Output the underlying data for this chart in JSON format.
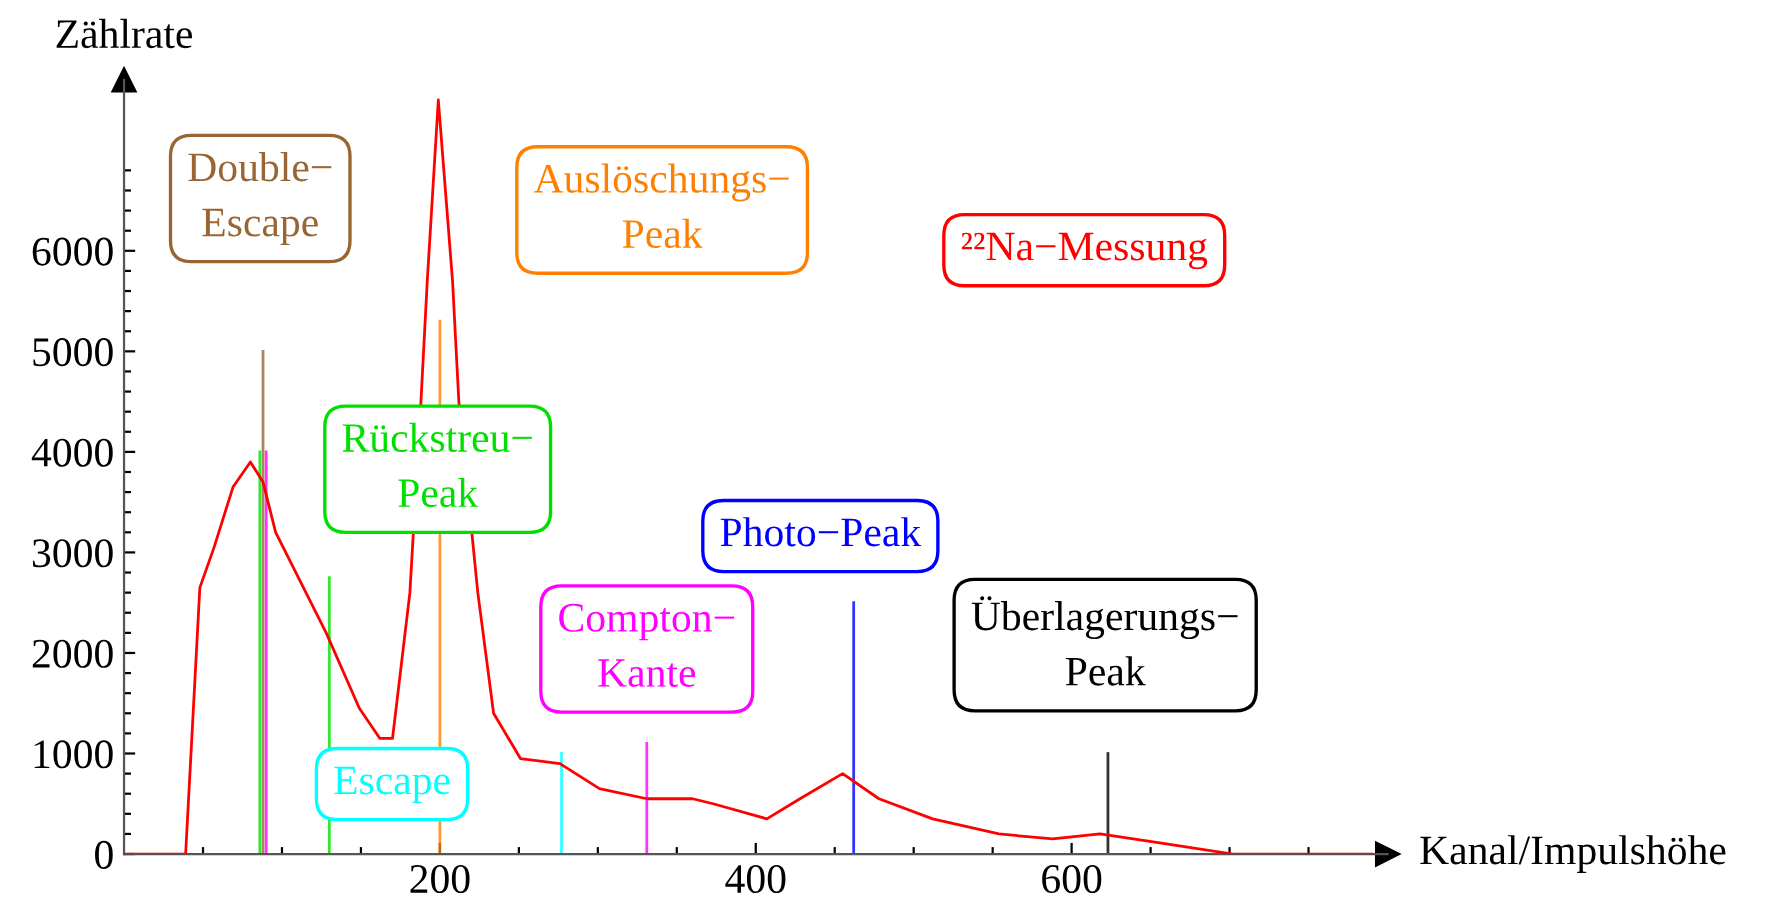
{
  "chart_data": {
    "type": "line",
    "xlabel": "Kanal/Impulshöhe",
    "ylabel": "Zählrate",
    "xlim": [
      0,
      800
    ],
    "ylim": [
      0,
      7700
    ],
    "xticks": [
      {
        "value": 50,
        "label": null
      },
      {
        "value": 100,
        "label": null
      },
      {
        "value": 150,
        "label": null
      },
      200,
      {
        "value": 250,
        "label": null
      },
      {
        "value": 300,
        "label": null
      },
      {
        "value": 350,
        "label": null
      },
      400,
      {
        "value": 450,
        "label": null
      },
      {
        "value": 500,
        "label": null
      },
      {
        "value": 550,
        "label": null
      },
      600,
      {
        "value": 650,
        "label": null
      },
      {
        "value": 700,
        "label": null
      },
      {
        "value": 750,
        "label": null
      }
    ],
    "yticks": [
      0,
      {
        "value": 200,
        "label": null
      },
      {
        "value": 400,
        "label": null
      },
      {
        "value": 600,
        "label": null
      },
      {
        "value": 800,
        "label": null
      },
      1000,
      {
        "value": 1200,
        "label": null
      },
      {
        "value": 1400,
        "label": null
      },
      {
        "value": 1600,
        "label": null
      },
      {
        "value": 1800,
        "label": null
      },
      2000,
      {
        "value": 2200,
        "label": null
      },
      {
        "value": 2400,
        "label": null
      },
      {
        "value": 2600,
        "label": null
      },
      {
        "value": 2800,
        "label": null
      },
      3000,
      {
        "value": 3200,
        "label": null
      },
      {
        "value": 3400,
        "label": null
      },
      {
        "value": 3600,
        "label": null
      },
      {
        "value": 3800,
        "label": null
      },
      4000,
      {
        "value": 4200,
        "label": null
      },
      {
        "value": 4400,
        "label": null
      },
      {
        "value": 4600,
        "label": null
      },
      {
        "value": 4800,
        "label": null
      },
      5000,
      {
        "value": 5200,
        "label": null
      },
      {
        "value": 5400,
        "label": null
      },
      {
        "value": 5600,
        "label": null
      },
      {
        "value": 5800,
        "label": null
      },
      6000,
      {
        "value": 6200,
        "label": null
      },
      {
        "value": 6400,
        "label": null
      },
      {
        "value": 6600,
        "label": null
      },
      {
        "value": 6800,
        "label": null
      }
    ],
    "grid": false,
    "legend": false,
    "marker": "none",
    "line_style": "solid",
    "series": [
      {
        "name": "²²Na−Messung",
        "color": "#ff0000",
        "x": [
          0,
          39,
          48,
          57,
          69,
          80,
          88,
          96,
          128,
          149,
          162,
          170,
          181,
          188,
          192,
          199,
          202,
          208,
          212,
          224,
          234,
          251,
          276,
          301,
          331,
          360,
          373,
          407,
          428,
          455,
          478,
          512,
          554,
          588,
          618,
          660,
          702,
          790
        ],
        "values": [
          0,
          0,
          2650,
          3050,
          3650,
          3900,
          3700,
          3200,
          2200,
          1450,
          1150,
          1150,
          2600,
          4500,
          5700,
          7500,
          6900,
          5700,
          4500,
          2600,
          1400,
          950,
          900,
          650,
          550,
          550,
          500,
          350,
          550,
          800,
          550,
          350,
          200,
          150,
          200,
          100,
          0,
          0
        ]
      },
      {
        "color": "#996633",
        "x": [
          88,
          88
        ],
        "values": [
          0,
          5000
        ]
      },
      {
        "color": "#ff8000",
        "x": [
          200,
          200
        ],
        "values": [
          0,
          5300
        ]
      },
      {
        "color": "#00e000",
        "x": [
          130,
          130
        ],
        "values": [
          0,
          2750
        ]
      },
      {
        "color": "#00ffff",
        "x": [
          277,
          277
        ],
        "values": [
          0,
          1000
        ]
      },
      {
        "color": "#ff00ff",
        "x": [
          331,
          331
        ],
        "values": [
          0,
          1100
        ]
      },
      {
        "color": "#0000ff",
        "x": [
          462,
          462
        ],
        "values": [
          0,
          2500
        ]
      },
      {
        "color": "#000000",
        "x": [
          623,
          623
        ],
        "values": [
          0,
          1000
        ]
      },
      {
        "color": "#00e000",
        "x": [
          86,
          86
        ],
        "values": [
          0,
          4000
        ]
      },
      {
        "color": "#ff00ff",
        "x": [
          90,
          90
        ],
        "values": [
          0,
          4000
        ]
      }
    ],
    "annotations": [
      {
        "text": "Double−\nEscape",
        "x": 88,
        "y": 5000
      },
      {
        "text": "Auslöschungs−\nPeak",
        "x": 200,
        "y": 5300
      },
      {
        "text": "Rückstreu−\nPeak",
        "x": 130,
        "y": 2750
      },
      {
        "text": "Escape",
        "x": 277,
        "y": 1000
      },
      {
        "text": "Compton−\nKante",
        "x": 331,
        "y": 1100
      },
      {
        "text": "Photo−Peak",
        "x": 462,
        "y": 2500
      },
      {
        "text": "Überlagerungs−\nPeak",
        "x": 623,
        "y": 1000
      }
    ]
  }
}
